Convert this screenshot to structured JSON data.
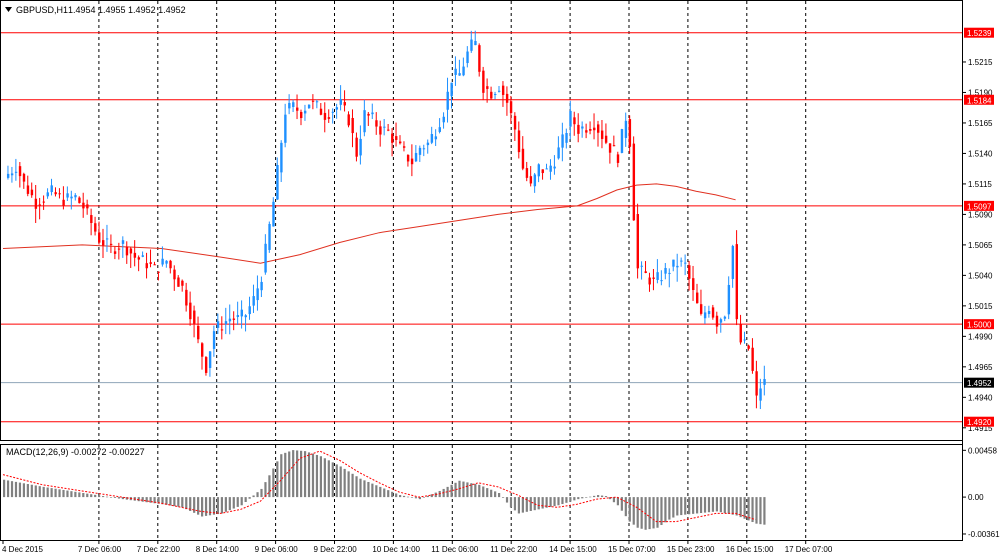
{
  "chart_header": {
    "symbol_text": "GBPUSD,H1",
    "ohlc_text": "1.4954 1.4955 1.4952 1.4952",
    "menu_icon": "triangle-down-icon"
  },
  "macd_header": {
    "text": "MACD(12,26,9) -0.00272 -0.00227"
  },
  "colors": {
    "bull": "#1e90ff",
    "bear": "#ff0000",
    "level_line": "#ff0000",
    "current_line": "#8fa4b8",
    "ma_line": "#e03020",
    "macd_bars": "#808080",
    "signal_line": "#ff0000",
    "grid": "#000000",
    "price_label_bg": "#ff0000",
    "price_label_text": "#ffffff",
    "current_label_bg": "#000000"
  },
  "chart_data": [
    {
      "type": "candlestick",
      "title": "GBPUSD,H1",
      "ylim": [
        1.4905,
        1.5265
      ],
      "y_ticks": [
        "1.5215",
        "1.5190",
        "1.5165",
        "1.5140",
        "1.5115",
        "1.5090",
        "1.5065",
        "1.5040",
        "1.5015",
        "1.4990",
        "1.4965",
        "1.4940",
        "1.4915"
      ],
      "x_ticks": [
        "4 Dec 2015",
        "7 Dec 06:00",
        "7 Dec 22:00",
        "8 Dec 14:00",
        "9 Dec 06:00",
        "9 Dec 22:00",
        "10 Dec 14:00",
        "11 Dec 06:00",
        "11 Dec 22:00",
        "14 Dec 15:00",
        "15 Dec 07:00",
        "15 Dec 23:00",
        "16 Dec 15:00",
        "17 Dec 07:00"
      ],
      "horizontal_levels": [
        {
          "price": 1.5239,
          "label": "1.5239"
        },
        {
          "price": 1.5184,
          "label": "1.5184"
        },
        {
          "price": 1.5097,
          "label": "1.5097"
        },
        {
          "price": 1.5,
          "label": "1.5000"
        },
        {
          "price": 1.492,
          "label": "1.4920"
        }
      ],
      "current_price": {
        "price": 1.4952,
        "label": "1.4952"
      },
      "close_path": [
        [
          0,
          1.512
        ],
        [
          3,
          1.513
        ],
        [
          5,
          1.5115
        ],
        [
          8,
          1.51
        ],
        [
          12,
          1.5108
        ],
        [
          15,
          1.5102
        ],
        [
          18,
          1.5104
        ],
        [
          20,
          1.5096
        ],
        [
          24,
          1.507
        ],
        [
          27,
          1.5062
        ],
        [
          30,
          1.5066
        ],
        [
          33,
          1.5055
        ],
        [
          36,
          1.505
        ],
        [
          38,
          1.5045
        ],
        [
          41,
          1.5052
        ],
        [
          43,
          1.504
        ],
        [
          45,
          1.503
        ],
        [
          47,
          1.501
        ],
        [
          49,
          1.4985
        ],
        [
          51,
          1.4965
        ],
        [
          53,
          1.4995
        ],
        [
          55,
          1.5
        ],
        [
          57,
          1.5005
        ],
        [
          59,
          1.5004
        ],
        [
          61,
          1.5008
        ],
        [
          63,
          1.502
        ],
        [
          65,
          1.504
        ],
        [
          66,
          1.506
        ],
        [
          67,
          1.508
        ],
        [
          68,
          1.51
        ],
        [
          69,
          1.5125
        ],
        [
          70,
          1.515
        ],
        [
          71,
          1.5175
        ],
        [
          73,
          1.5178
        ],
        [
          75,
          1.5174
        ],
        [
          77,
          1.5182
        ],
        [
          79,
          1.5178
        ],
        [
          81,
          1.5172
        ],
        [
          83,
          1.5176
        ],
        [
          85,
          1.518
        ],
        [
          87,
          1.5168
        ],
        [
          89,
          1.514
        ],
        [
          91,
          1.5172
        ],
        [
          93,
          1.5168
        ],
        [
          95,
          1.516
        ],
        [
          97,
          1.5158
        ],
        [
          99,
          1.5148
        ],
        [
          101,
          1.514
        ],
        [
          103,
          1.5133
        ],
        [
          105,
          1.5145
        ],
        [
          107,
          1.5148
        ],
        [
          109,
          1.516
        ],
        [
          111,
          1.5175
        ],
        [
          113,
          1.5202
        ],
        [
          115,
          1.5205
        ],
        [
          117,
          1.5222
        ],
        [
          118,
          1.5228
        ],
        [
          119,
          1.523
        ],
        [
          120,
          1.521
        ],
        [
          121,
          1.5195
        ],
        [
          123,
          1.519
        ],
        [
          125,
          1.5196
        ],
        [
          127,
          1.5182
        ],
        [
          129,
          1.516
        ],
        [
          131,
          1.5128
        ],
        [
          133,
          1.5112
        ],
        [
          135,
          1.5128
        ],
        [
          137,
          1.5125
        ],
        [
          139,
          1.5135
        ],
        [
          141,
          1.515
        ],
        [
          143,
          1.517
        ],
        [
          145,
          1.516
        ],
        [
          147,
          1.5162
        ],
        [
          149,
          1.5165
        ],
        [
          151,
          1.5155
        ],
        [
          153,
          1.5145
        ],
        [
          155,
          1.5138
        ],
        [
          157,
          1.517
        ],
        [
          158,
          1.515
        ],
        [
          159,
          1.509
        ],
        [
          160,
          1.5045
        ],
        [
          162,
          1.504
        ],
        [
          164,
          1.5034
        ],
        [
          166,
          1.504
        ],
        [
          168,
          1.5045
        ],
        [
          170,
          1.505
        ],
        [
          172,
          1.5048
        ],
        [
          174,
          1.5025
        ],
        [
          176,
          1.5005
        ],
        [
          178,
          1.5015
        ],
        [
          180,
          1.5002
        ],
        [
          182,
          1.501
        ],
        [
          184,
          1.5064
        ],
        [
          185,
          1.5
        ],
        [
          186,
          1.4985
        ],
        [
          188,
          1.498
        ],
        [
          189,
          1.496
        ],
        [
          190,
          1.4938
        ],
        [
          191,
          1.4949
        ],
        [
          192,
          1.4952
        ]
      ],
      "series": [
        {
          "name": "",
          "type": "line",
          "x": [
            0,
            20,
            40,
            55,
            65,
            75,
            85,
            95,
            105,
            115,
            125,
            135,
            145,
            150,
            155,
            160,
            165,
            170,
            175,
            180,
            185
          ],
          "y": [
            1.5062,
            1.5065,
            1.5062,
            1.5055,
            1.505,
            1.5057,
            1.5067,
            1.5075,
            1.508,
            1.5085,
            1.509,
            1.5094,
            1.5097,
            1.5103,
            1.511,
            1.5114,
            1.5115,
            1.5113,
            1.5109,
            1.5106,
            1.5102
          ]
        }
      ]
    },
    {
      "type": "bar",
      "title": "MACD(12,26,9) -0.00272 -0.00227",
      "ylim": [
        -0.0042,
        0.0051
      ],
      "y_ticks": [
        "0.00458",
        "0.00",
        "-0.00361"
      ],
      "series": [
        {
          "name": "",
          "type": "bar",
          "x": [
            0,
            10,
            20,
            30,
            40,
            45,
            50,
            55,
            60,
            65,
            68,
            70,
            73,
            76,
            80,
            85,
            90,
            95,
            100,
            105,
            110,
            112,
            115,
            120,
            125,
            128,
            130,
            135,
            140,
            145,
            150,
            152,
            155,
            158,
            160,
            162,
            165,
            168,
            170,
            175,
            180,
            185,
            190,
            192
          ],
          "y": [
            0.0017,
            0.001,
            0.0004,
            -0.0002,
            -0.0007,
            -0.001,
            -0.0019,
            -0.0016,
            -0.0008,
            0.0008,
            0.0028,
            0.0042,
            0.0046,
            0.0045,
            0.004,
            0.003,
            0.0018,
            0.001,
            0.0002,
            -0.0002,
            0.0006,
            0.001,
            0.0016,
            0.0012,
            0.0004,
            -0.001,
            -0.0016,
            -0.0012,
            -0.0008,
            -0.0002,
            0.0002,
            0.0001,
            -0.0008,
            -0.0024,
            -0.003,
            -0.0032,
            -0.003,
            -0.0022,
            -0.0018,
            -0.0016,
            -0.0014,
            -0.0018,
            -0.0026,
            -0.0027
          ]
        },
        {
          "name": "",
          "type": "line",
          "x": [
            0,
            10,
            20,
            30,
            40,
            45,
            50,
            55,
            60,
            65,
            70,
            75,
            80,
            85,
            90,
            95,
            100,
            105,
            110,
            115,
            120,
            125,
            130,
            135,
            140,
            145,
            150,
            155,
            160,
            165,
            170,
            175,
            180,
            185,
            190
          ],
          "y": [
            0.0022,
            0.0012,
            0.0006,
            0.0,
            -0.0006,
            -0.001,
            -0.0014,
            -0.0016,
            -0.0012,
            -0.0004,
            0.0016,
            0.0038,
            0.0045,
            0.0036,
            0.0024,
            0.0014,
            0.0005,
            0.0,
            0.0003,
            0.0008,
            0.0014,
            0.001,
            0.0002,
            -0.0008,
            -0.001,
            -0.0007,
            -0.0002,
            0.0,
            -0.001,
            -0.0024,
            -0.0024,
            -0.002,
            -0.0016,
            -0.0016,
            -0.0022
          ]
        }
      ]
    }
  ]
}
